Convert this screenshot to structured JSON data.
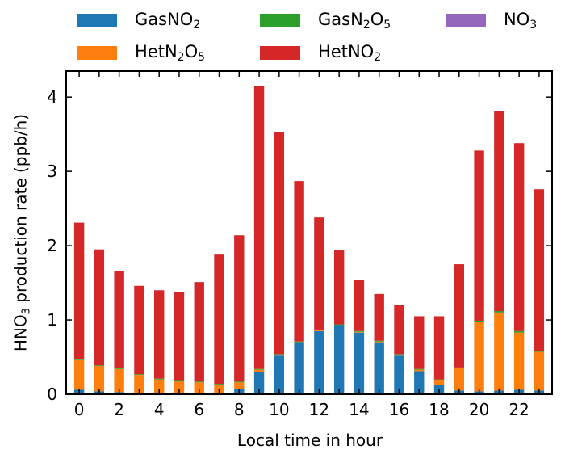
{
  "chart_data": {
    "type": "bar",
    "stacked": true,
    "xlabel": "Local time in hour",
    "ylabel_parts": [
      "HNO",
      "3",
      " production rate (ppb/h)"
    ],
    "ylim": [
      0,
      4.35
    ],
    "xticks": [
      0,
      2,
      4,
      6,
      8,
      10,
      12,
      14,
      16,
      18,
      20,
      22
    ],
    "yticks": [
      0,
      1,
      2,
      3,
      4
    ],
    "categories": [
      0,
      1,
      2,
      3,
      4,
      5,
      6,
      7,
      8,
      9,
      10,
      11,
      12,
      13,
      14,
      15,
      16,
      17,
      18,
      19,
      20,
      21,
      22,
      23
    ],
    "legend_position": "top",
    "series": [
      {
        "name_parts": [
          "GasNO",
          "2",
          ""
        ],
        "color": "#1f77b4",
        "values": [
          0.06,
          0.04,
          0.03,
          0.02,
          0.02,
          0.02,
          0.02,
          0.02,
          0.07,
          0.3,
          0.52,
          0.7,
          0.85,
          0.93,
          0.83,
          0.7,
          0.52,
          0.31,
          0.13,
          0.05,
          0.04,
          0.05,
          0.06,
          0.05
        ]
      },
      {
        "name_parts": [
          "HetN",
          "2",
          "O",
          "5"
        ],
        "color": "#ff7f0e",
        "values": [
          0.4,
          0.34,
          0.31,
          0.24,
          0.18,
          0.15,
          0.14,
          0.11,
          0.09,
          0.03,
          0.01,
          0.0,
          0.01,
          0.0,
          0.01,
          0.01,
          0.01,
          0.02,
          0.06,
          0.3,
          0.93,
          1.05,
          0.77,
          0.52
        ]
      },
      {
        "name_parts": [
          "GasN",
          "2",
          "O",
          "5"
        ],
        "color": "#2ca02c",
        "values": [
          0.01,
          0.01,
          0.01,
          0.01,
          0.01,
          0.01,
          0.01,
          0.01,
          0.01,
          0.01,
          0.01,
          0.01,
          0.01,
          0.01,
          0.01,
          0.01,
          0.01,
          0.01,
          0.01,
          0.01,
          0.02,
          0.02,
          0.02,
          0.01
        ]
      },
      {
        "name_parts": [
          "HetNO",
          "2",
          ""
        ],
        "color": "#d62728",
        "values": [
          1.84,
          1.56,
          1.31,
          1.19,
          1.19,
          1.2,
          1.34,
          1.74,
          1.97,
          3.81,
          2.99,
          2.16,
          1.51,
          1.0,
          0.69,
          0.63,
          0.66,
          0.71,
          0.85,
          1.39,
          2.29,
          2.69,
          2.53,
          2.18
        ]
      },
      {
        "name_parts": [
          "NO",
          "3",
          ""
        ],
        "color": "#9467bd",
        "values": [
          0,
          0,
          0,
          0,
          0,
          0,
          0,
          0,
          0,
          0,
          0,
          0,
          0,
          0,
          0,
          0,
          0,
          0,
          0,
          0,
          0,
          0,
          0,
          0
        ]
      }
    ]
  }
}
